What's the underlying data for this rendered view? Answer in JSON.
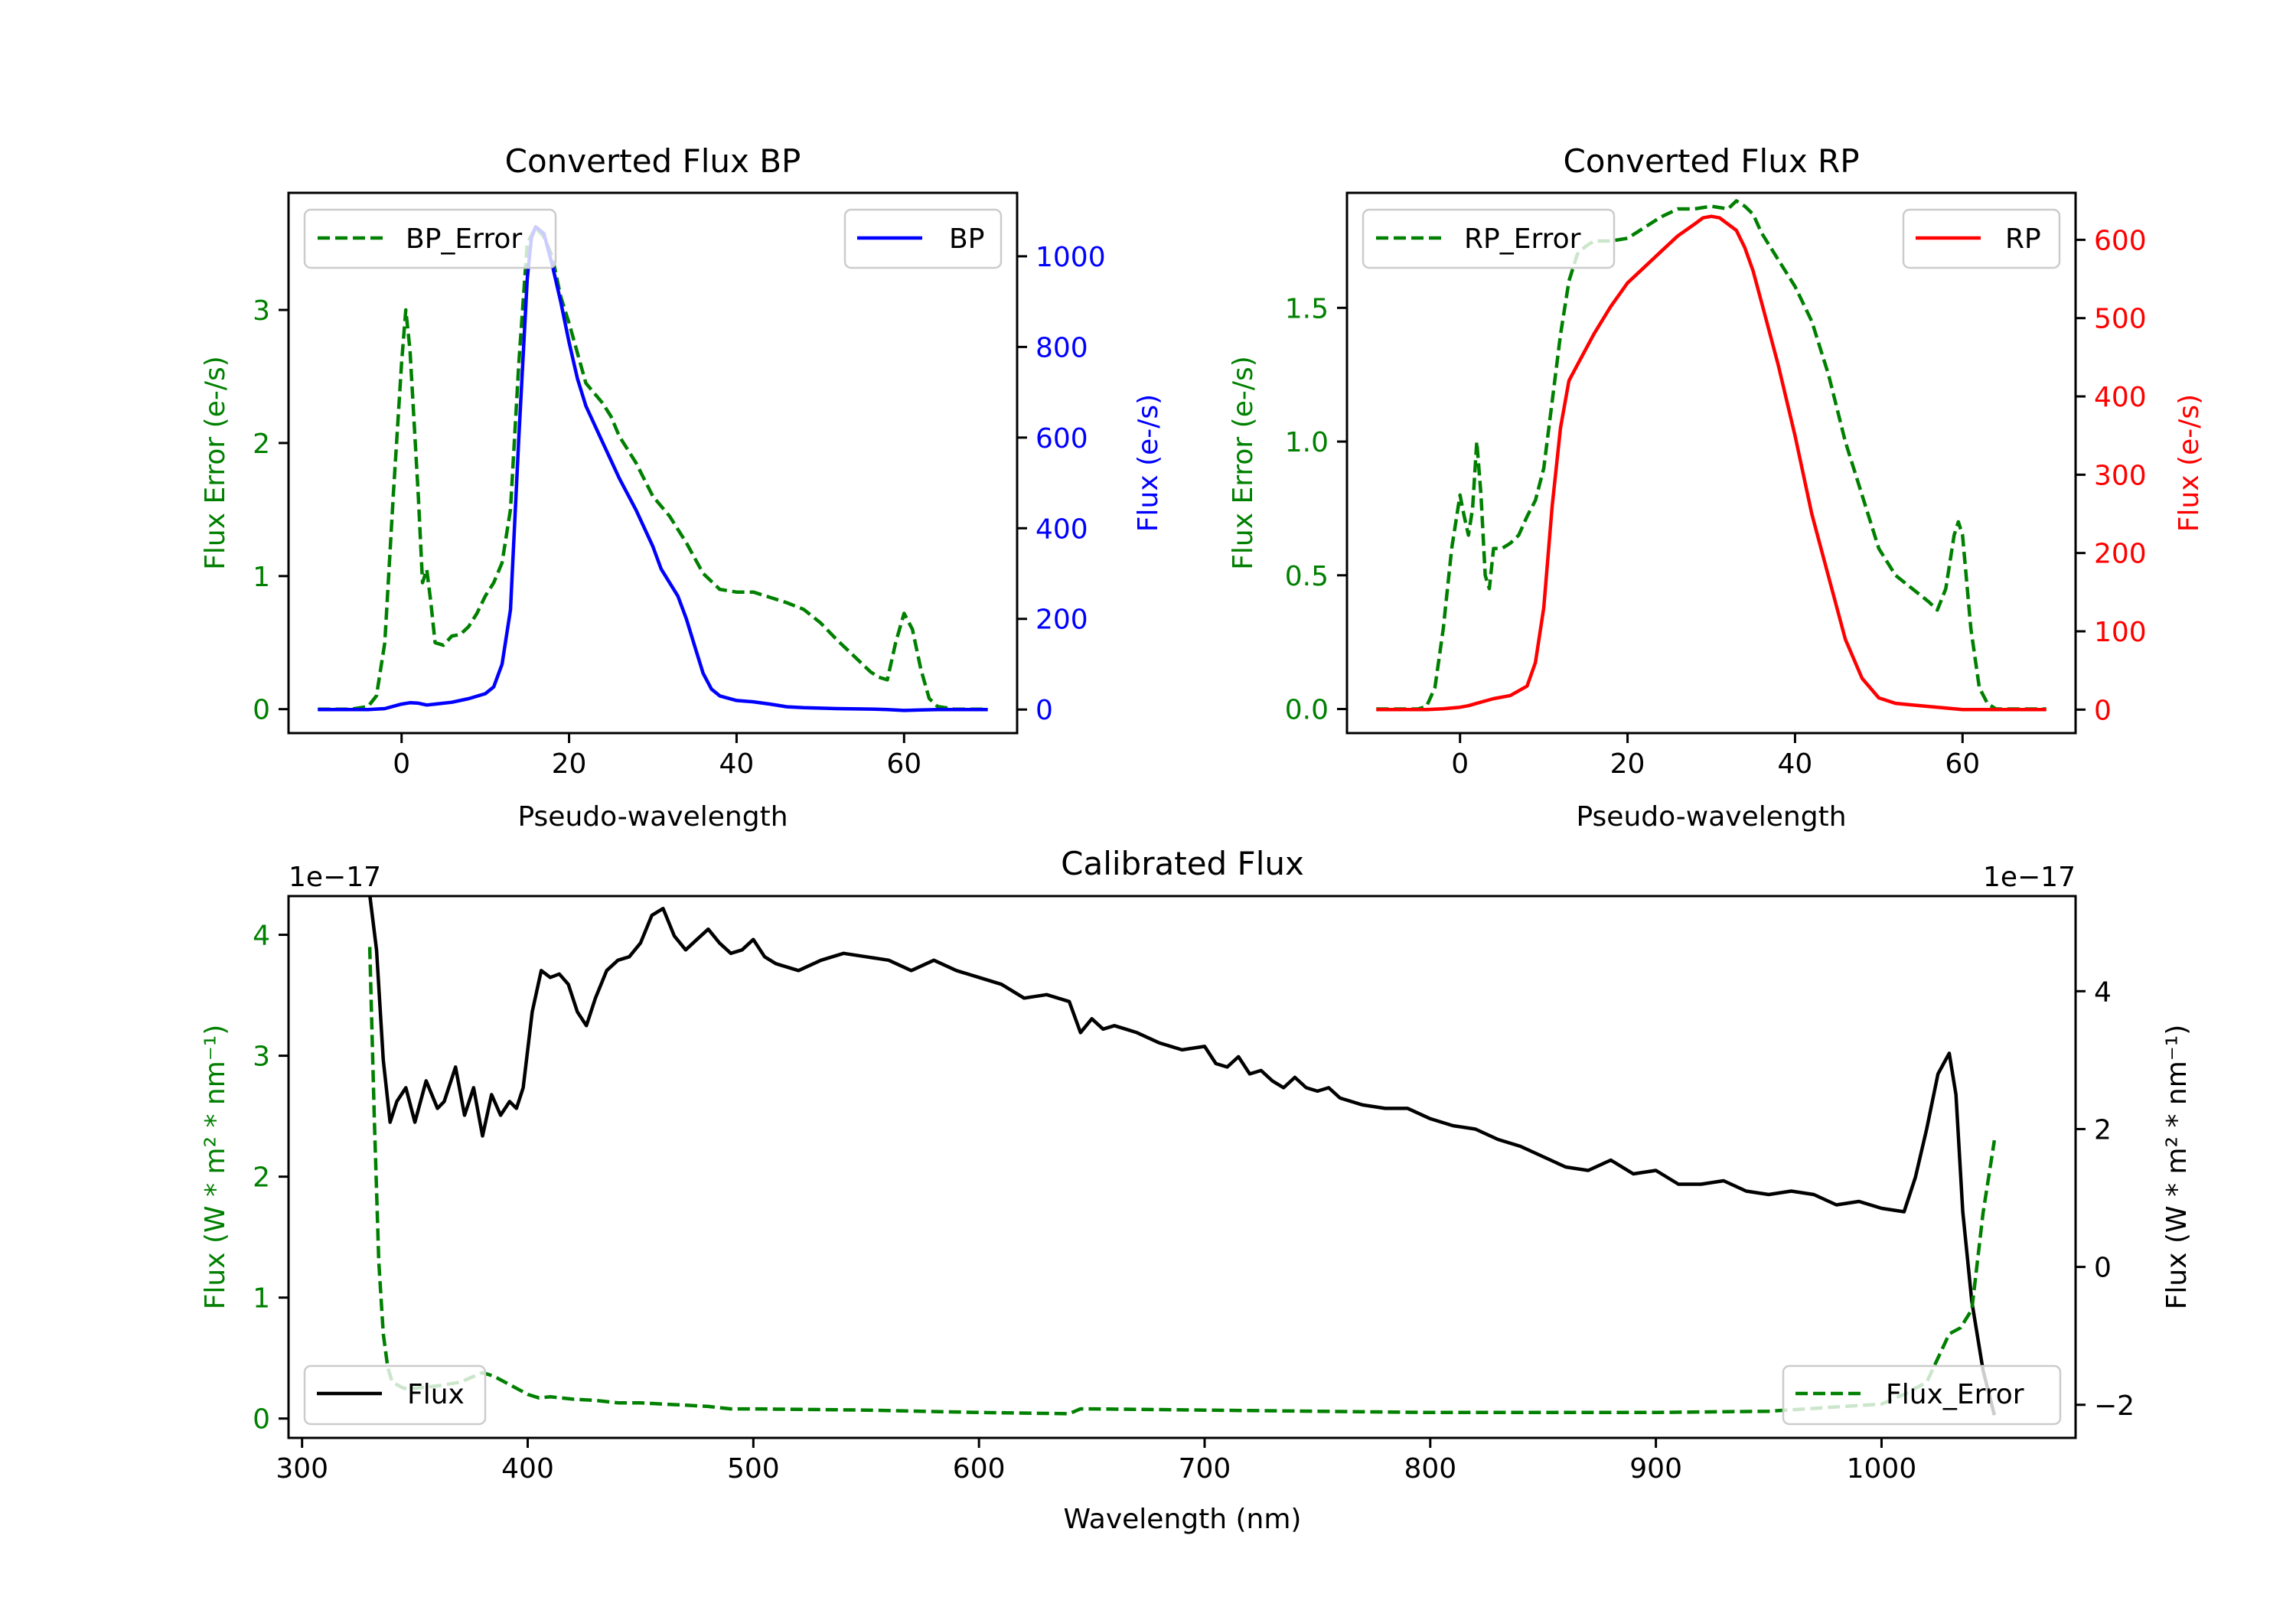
{
  "chart_data": [
    {
      "id": "bp",
      "type": "line",
      "title": "Converted Flux BP",
      "xlabel": "Pseudo-wavelength",
      "ylabel_left": "Flux Error (e-/s)",
      "ylabel_right": "Flux (e-/s)",
      "xlim": [
        -13.5,
        73.5
      ],
      "ylim_left": [
        -0.18,
        3.88
      ],
      "ylim_right": [
        -52,
        1140
      ],
      "xticks": [
        0,
        20,
        40,
        60
      ],
      "yticks_left": [
        0,
        1,
        2,
        3
      ],
      "yticks_right": [
        0,
        200,
        400,
        600,
        800,
        1000
      ],
      "colors": {
        "left": "#008000",
        "right": "#0000ff"
      },
      "legend_left": {
        "label": "BP_Error",
        "placement": "top-left"
      },
      "legend_right": {
        "label": "BP",
        "placement": "top-right"
      },
      "series": [
        {
          "name": "BP_Error",
          "axis": "left",
          "style": "dashed",
          "color": "#008000",
          "x": [
            -10,
            -6,
            -4,
            -3,
            -2,
            -1,
            0,
            0.5,
            1,
            2,
            2.5,
            3,
            3.5,
            4,
            5,
            6,
            7,
            8,
            9,
            10,
            11,
            12,
            13,
            14,
            15,
            16,
            17,
            18,
            19,
            20,
            22,
            24,
            25,
            26,
            27,
            28,
            30,
            32,
            34,
            36,
            38,
            40,
            42,
            44,
            46,
            48,
            50,
            52,
            54,
            56,
            57,
            58,
            59,
            60,
            61,
            62,
            63,
            64,
            66,
            70
          ],
          "y": [
            0,
            0,
            0.02,
            0.1,
            0.5,
            1.6,
            2.6,
            3.0,
            2.7,
            1.6,
            0.95,
            1.05,
            0.8,
            0.5,
            0.48,
            0.55,
            0.56,
            0.62,
            0.72,
            0.85,
            0.95,
            1.1,
            1.5,
            2.6,
            3.5,
            3.62,
            3.55,
            3.4,
            3.1,
            2.9,
            2.45,
            2.3,
            2.2,
            2.05,
            1.95,
            1.85,
            1.6,
            1.45,
            1.25,
            1.02,
            0.9,
            0.88,
            0.88,
            0.84,
            0.8,
            0.75,
            0.65,
            0.52,
            0.4,
            0.28,
            0.24,
            0.22,
            0.5,
            0.72,
            0.6,
            0.3,
            0.08,
            0.02,
            0,
            0
          ]
        },
        {
          "name": "BP",
          "axis": "right",
          "style": "solid",
          "color": "#0000ff",
          "x": [
            -10,
            -4,
            -2,
            0,
            1,
            2,
            3,
            4,
            6,
            8,
            10,
            11,
            12,
            13,
            14,
            15,
            15.5,
            16,
            17,
            18,
            19,
            20,
            21,
            22,
            24,
            26,
            28,
            30,
            31,
            32,
            33,
            34,
            35,
            36,
            37,
            38,
            40,
            42,
            44,
            46,
            48,
            50,
            52,
            56,
            58,
            60,
            62,
            64,
            66,
            70
          ],
          "y": [
            0,
            0,
            2,
            12,
            15,
            14,
            10,
            12,
            16,
            24,
            35,
            50,
            100,
            220,
            600,
            950,
            1040,
            1065,
            1050,
            980,
            900,
            810,
            730,
            670,
            590,
            510,
            440,
            360,
            310,
            280,
            250,
            200,
            140,
            80,
            45,
            30,
            20,
            17,
            12,
            6,
            4,
            3,
            2,
            1,
            0,
            -2,
            -1,
            0,
            0,
            0
          ]
        }
      ]
    },
    {
      "id": "rp",
      "type": "line",
      "title": "Converted Flux RP",
      "xlabel": "Pseudo-wavelength",
      "ylabel_left": "Flux Error (e-/s)",
      "ylabel_right": "Flux (e-/s)",
      "xlim": [
        -13.5,
        73.5
      ],
      "ylim_left": [
        -0.09,
        1.93
      ],
      "ylim_right": [
        -30,
        660
      ],
      "xticks": [
        0,
        20,
        40,
        60
      ],
      "yticks_left": [
        "0.0",
        "0.5",
        "1.0",
        "1.5"
      ],
      "yticks_right": [
        0,
        100,
        200,
        300,
        400,
        500,
        600
      ],
      "colors": {
        "left": "#008000",
        "right": "#ff0000"
      },
      "legend_left": {
        "label": "RP_Error",
        "placement": "top-left"
      },
      "legend_right": {
        "label": "RP",
        "placement": "top-right"
      },
      "series": [
        {
          "name": "RP_Error",
          "axis": "left",
          "style": "dashed",
          "color": "#008000",
          "x": [
            -10,
            -5,
            -4,
            -3,
            -2,
            -1,
            0,
            0.5,
            1,
            1.5,
            2,
            2.5,
            3,
            3.5,
            4,
            5,
            6,
            7,
            8,
            9,
            10,
            11,
            12,
            13,
            14,
            15,
            16,
            18,
            20,
            22,
            24,
            26,
            28,
            30,
            32,
            33,
            34,
            35,
            36,
            38,
            40,
            42,
            44,
            46,
            48,
            50,
            52,
            54,
            56,
            57,
            58,
            59,
            59.5,
            60,
            61,
            62,
            63,
            64,
            66,
            70
          ],
          "y": [
            0,
            0,
            0.01,
            0.08,
            0.3,
            0.6,
            0.8,
            0.72,
            0.65,
            0.75,
            1.0,
            0.8,
            0.5,
            0.45,
            0.6,
            0.6,
            0.62,
            0.65,
            0.72,
            0.78,
            0.9,
            1.15,
            1.4,
            1.6,
            1.7,
            1.73,
            1.75,
            1.75,
            1.76,
            1.8,
            1.84,
            1.87,
            1.87,
            1.88,
            1.87,
            1.9,
            1.88,
            1.85,
            1.78,
            1.68,
            1.58,
            1.45,
            1.25,
            1.0,
            0.8,
            0.6,
            0.5,
            0.45,
            0.4,
            0.37,
            0.45,
            0.65,
            0.7,
            0.65,
            0.3,
            0.08,
            0.02,
            0,
            0,
            0
          ]
        },
        {
          "name": "RP",
          "axis": "right",
          "style": "solid",
          "color": "#ff0000",
          "x": [
            -10,
            -4,
            -2,
            0,
            1,
            2,
            3,
            4,
            6,
            8,
            9,
            10,
            11,
            12,
            13,
            14,
            16,
            18,
            20,
            22,
            24,
            26,
            28,
            29,
            30,
            31,
            32,
            33,
            34,
            35,
            36,
            38,
            40,
            42,
            44,
            46,
            48,
            50,
            52,
            54,
            56,
            58,
            60,
            62,
            64,
            66,
            70
          ],
          "y": [
            0,
            0,
            1,
            3,
            5,
            8,
            11,
            14,
            18,
            30,
            60,
            130,
            260,
            360,
            420,
            440,
            480,
            515,
            545,
            565,
            585,
            605,
            620,
            628,
            630,
            628,
            620,
            612,
            590,
            560,
            520,
            440,
            350,
            250,
            170,
            90,
            40,
            15,
            8,
            6,
            4,
            2,
            0,
            0,
            0,
            0,
            0
          ]
        }
      ]
    },
    {
      "id": "calibrated",
      "type": "line",
      "title": "Calibrated Flux",
      "xlabel": "Wavelength (nm)",
      "ylabel_left": "Flux (W * m² * nm⁻¹)",
      "ylabel_right": "Flux (W * m² * nm⁻¹)",
      "offset_left": "1e−17",
      "offset_right": "1e−17",
      "xlim": [
        294,
        1086
      ],
      "ylim_left": [
        -0.16,
        4.32
      ],
      "ylim_right": [
        -2.48,
        5.38
      ],
      "xticks": [
        300,
        400,
        500,
        600,
        700,
        800,
        900,
        1000
      ],
      "yticks_left": [
        0,
        1,
        2,
        3,
        4
      ],
      "yticks_right": [
        "−2",
        "0",
        "2",
        "4"
      ],
      "yticks_right_values": [
        -2,
        0,
        2,
        4
      ],
      "colors": {
        "left": "#008000",
        "right": "#000000"
      },
      "legend_left": {
        "label": "Flux",
        "placement": "bottom-left"
      },
      "legend_right": {
        "label": "Flux_Error",
        "placement": "bottom-right"
      },
      "series": [
        {
          "name": "Flux_Error",
          "axis": "left",
          "style": "dashed",
          "color": "#008000",
          "x": [
            330,
            332,
            334,
            336,
            338,
            340,
            345,
            350,
            360,
            370,
            375,
            380,
            385,
            390,
            395,
            400,
            405,
            410,
            420,
            430,
            440,
            450,
            460,
            470,
            480,
            490,
            500,
            550,
            600,
            640,
            645,
            650,
            700,
            750,
            800,
            850,
            900,
            950,
            1000,
            1010,
            1020,
            1025,
            1030,
            1035,
            1040,
            1045,
            1050
          ],
          "y": [
            3.9,
            2.5,
            1.3,
            0.7,
            0.42,
            0.3,
            0.25,
            0.25,
            0.27,
            0.3,
            0.34,
            0.38,
            0.35,
            0.3,
            0.25,
            0.2,
            0.17,
            0.18,
            0.16,
            0.15,
            0.13,
            0.13,
            0.12,
            0.11,
            0.1,
            0.08,
            0.08,
            0.07,
            0.05,
            0.04,
            0.08,
            0.08,
            0.07,
            0.06,
            0.05,
            0.05,
            0.05,
            0.06,
            0.12,
            0.2,
            0.3,
            0.5,
            0.7,
            0.75,
            0.9,
            1.7,
            2.3
          ]
        },
        {
          "name": "Flux",
          "axis": "right",
          "style": "solid",
          "color": "#000000",
          "x": [
            330,
            333,
            336,
            339,
            342,
            346,
            350,
            355,
            360,
            363,
            368,
            372,
            376,
            380,
            384,
            388,
            392,
            395,
            398,
            402,
            406,
            410,
            414,
            418,
            422,
            426,
            430,
            435,
            440,
            445,
            450,
            455,
            460,
            465,
            470,
            475,
            480,
            485,
            490,
            495,
            500,
            505,
            510,
            515,
            520,
            530,
            540,
            550,
            560,
            570,
            580,
            590,
            600,
            610,
            620,
            630,
            640,
            645,
            650,
            655,
            660,
            665,
            670,
            680,
            690,
            700,
            705,
            710,
            715,
            720,
            725,
            730,
            735,
            740,
            745,
            750,
            755,
            760,
            770,
            780,
            790,
            800,
            810,
            820,
            830,
            840,
            850,
            860,
            870,
            880,
            890,
            900,
            910,
            920,
            930,
            940,
            950,
            960,
            970,
            980,
            990,
            1000,
            1010,
            1015,
            1020,
            1025,
            1030,
            1033,
            1036,
            1040,
            1045,
            1050
          ],
          "y": [
            5.4,
            4.6,
            3.0,
            2.1,
            2.4,
            2.6,
            2.1,
            2.7,
            2.3,
            2.4,
            2.9,
            2.2,
            2.6,
            1.9,
            2.5,
            2.2,
            2.4,
            2.3,
            2.6,
            3.7,
            4.3,
            4.2,
            4.25,
            4.1,
            3.7,
            3.5,
            3.9,
            4.3,
            4.45,
            4.5,
            4.7,
            5.1,
            5.2,
            4.8,
            4.6,
            4.75,
            4.9,
            4.7,
            4.55,
            4.6,
            4.75,
            4.5,
            4.4,
            4.35,
            4.3,
            4.45,
            4.55,
            4.5,
            4.45,
            4.3,
            4.45,
            4.3,
            4.2,
            4.1,
            3.9,
            3.95,
            3.85,
            3.4,
            3.6,
            3.45,
            3.5,
            3.45,
            3.4,
            3.25,
            3.15,
            3.2,
            2.95,
            2.9,
            3.05,
            2.8,
            2.85,
            2.7,
            2.6,
            2.75,
            2.6,
            2.55,
            2.6,
            2.45,
            2.35,
            2.3,
            2.3,
            2.15,
            2.05,
            2.0,
            1.85,
            1.75,
            1.6,
            1.45,
            1.4,
            1.55,
            1.35,
            1.4,
            1.2,
            1.2,
            1.25,
            1.1,
            1.05,
            1.1,
            1.05,
            0.9,
            0.95,
            0.85,
            0.8,
            1.3,
            2.0,
            2.8,
            3.1,
            2.5,
            0.8,
            -0.5,
            -1.5,
            -2.15
          ]
        }
      ]
    }
  ]
}
